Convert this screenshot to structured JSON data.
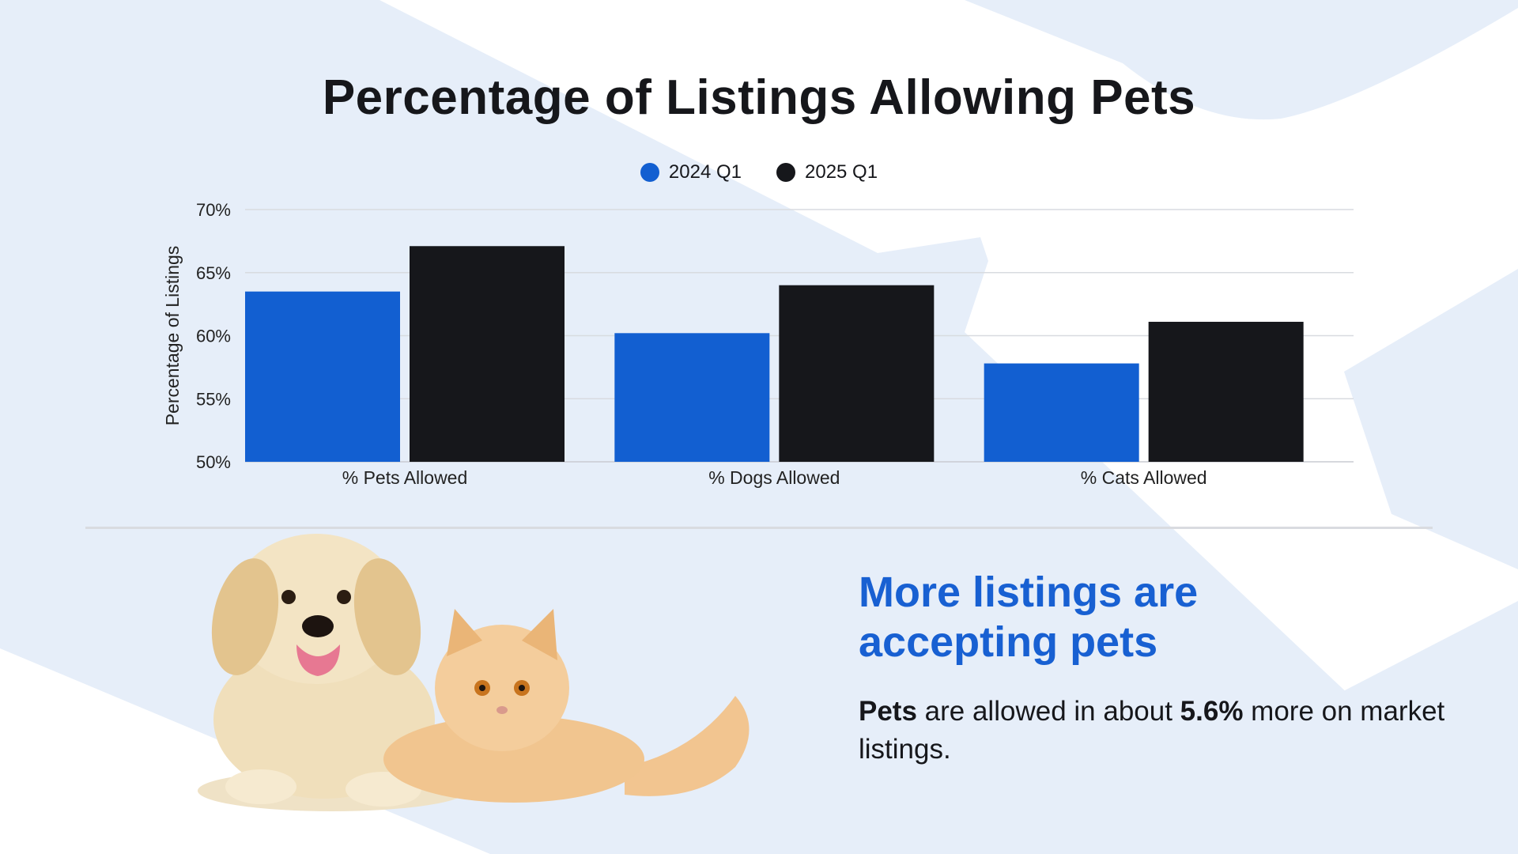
{
  "colors": {
    "series_2024": "#125fd1",
    "series_2025": "#16171b",
    "headline": "#1860d2",
    "background_shape": "#e6eef9"
  },
  "chart_data": {
    "type": "bar",
    "title": "Percentage of Listings Allowing Pets",
    "ylabel": "Percentage of Listings",
    "xlabel": "",
    "categories": [
      "% Pets Allowed",
      "% Dogs Allowed",
      "% Cats Allowed"
    ],
    "series": [
      {
        "name": "2024 Q1",
        "values": [
          63.5,
          60.2,
          57.8
        ]
      },
      {
        "name": "2025 Q1",
        "values": [
          67.1,
          64.0,
          61.1
        ]
      }
    ],
    "ylim": [
      50,
      70
    ],
    "yticks": [
      "50%",
      "55%",
      "60%",
      "65%",
      "70%"
    ],
    "grid": true,
    "legend_position": "top-center"
  },
  "callout": {
    "headline_line1": "More listings are",
    "headline_line2": "accepting pets",
    "body_bold_1": "Pets",
    "body_text_1": " are allowed in about ",
    "body_bold_2": "5.6%",
    "body_text_2": " more on market listings."
  },
  "illustration": {
    "icons": [
      "dog-icon",
      "cat-icon"
    ]
  }
}
